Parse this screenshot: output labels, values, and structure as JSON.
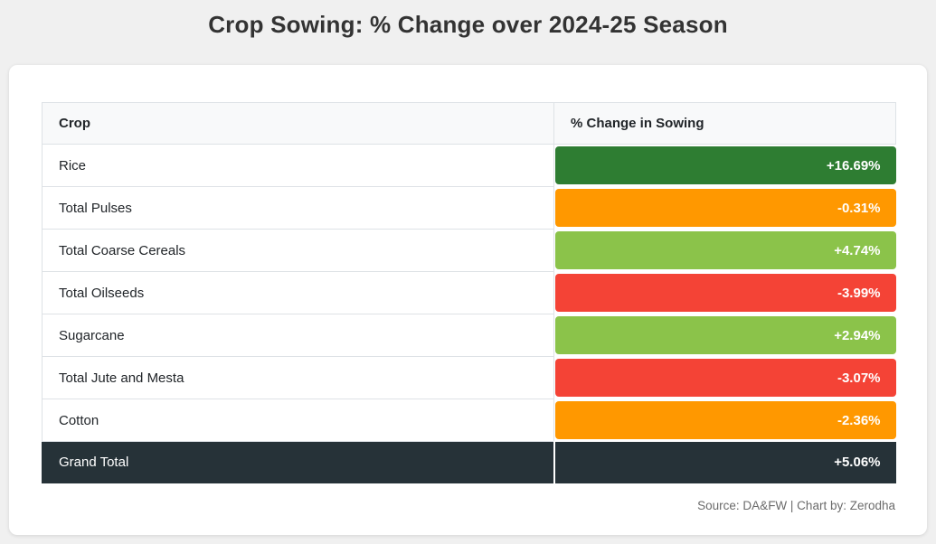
{
  "page": {
    "title": "Crop Sowing: % Change over 2024-25 Season",
    "footer": "Source: DA&FW | Chart by: Zerodha"
  },
  "table": {
    "headers": [
      "Crop",
      "% Change in Sowing"
    ],
    "rows": [
      {
        "crop": "Rice",
        "value": "+16.69%",
        "color": "#2e7d32",
        "is_total": false
      },
      {
        "crop": "Total Pulses",
        "value": "-0.31%",
        "color": "#ff9800",
        "is_total": false
      },
      {
        "crop": "Total Coarse Cereals",
        "value": "+4.74%",
        "color": "#8bc34a",
        "is_total": false
      },
      {
        "crop": "Total Oilseeds",
        "value": "-3.99%",
        "color": "#f44336",
        "is_total": false
      },
      {
        "crop": "Sugarcane",
        "value": "+2.94%",
        "color": "#8bc34a",
        "is_total": false
      },
      {
        "crop": "Total Jute and Mesta",
        "value": "-3.07%",
        "color": "#f44336",
        "is_total": false
      },
      {
        "crop": "Cotton",
        "value": "-2.36%",
        "color": "#ff9800",
        "is_total": false
      },
      {
        "crop": "Grand Total",
        "value": "+5.06%",
        "color": "#263238",
        "is_total": true
      }
    ]
  },
  "colors": {
    "strong_positive": "#2e7d32",
    "positive": "#8bc34a",
    "mild_negative": "#ff9800",
    "negative": "#f44336",
    "total_row": "#263238",
    "page_background": "#f0f0f0",
    "header_background": "#f8f9fa",
    "border": "#dee2e6"
  },
  "chart_data": {
    "type": "table",
    "title": "Crop Sowing: % Change over 2024-25 Season",
    "columns": [
      "Crop",
      "% Change in Sowing"
    ],
    "categories": [
      "Rice",
      "Total Pulses",
      "Total Coarse Cereals",
      "Total Oilseeds",
      "Sugarcane",
      "Total Jute and Mesta",
      "Cotton",
      "Grand Total"
    ],
    "values": [
      16.69,
      -0.31,
      4.74,
      -3.99,
      2.94,
      -3.07,
      -2.36,
      5.06
    ],
    "value_unit": "%",
    "annotations": "Cell colors encode sign/magnitude: dark green strong gain, light green gain, orange small loss, red loss, dark slate total row",
    "source": "Source: DA&FW | Chart by: Zerodha"
  }
}
